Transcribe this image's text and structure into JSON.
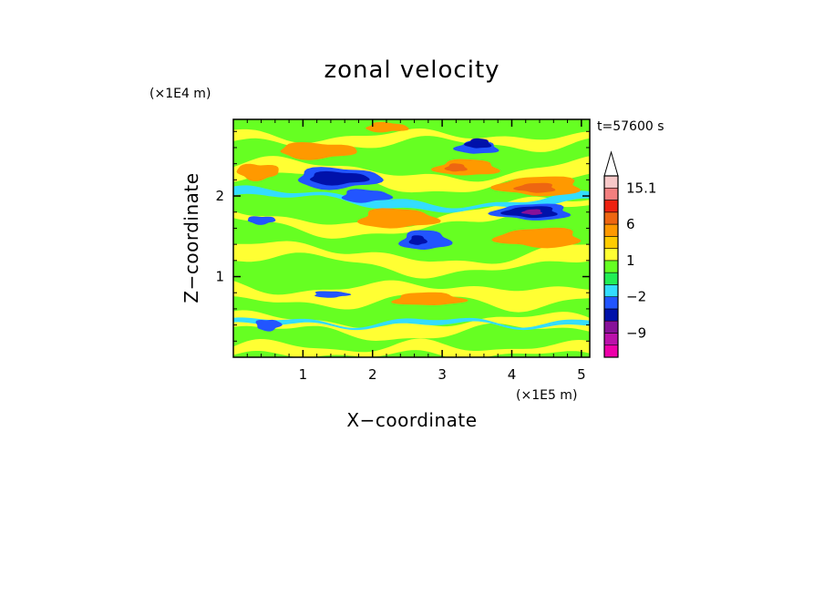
{
  "chart_data": {
    "type": "heatmap",
    "title": "zonal velocity",
    "xlabel": "X−coordinate",
    "ylabel": "Z−coordinate",
    "x_multiplier": "(×1E5 m)",
    "y_multiplier": "(×1E4 m)",
    "time_label": "t=57600 s",
    "xlim": [
      0,
      5.12
    ],
    "ylim": [
      0,
      2.95
    ],
    "x_ticks": [
      1,
      2,
      3,
      4,
      5
    ],
    "y_ticks": [
      1,
      2
    ],
    "x_tick_labels": [
      "1",
      "2",
      "3",
      "4",
      "5"
    ],
    "y_tick_labels": [
      "1",
      "2"
    ],
    "colorbar": {
      "extend": "max",
      "levels": [
        -15,
        -12,
        -9,
        -6,
        -3,
        -2,
        -1,
        0,
        1,
        2,
        3,
        6,
        9,
        12,
        15.1
      ],
      "colors": [
        "#ee00aa",
        "#bb11aa",
        "#881199",
        "#0011aa",
        "#2255ff",
        "#33ddff",
        "#22ee55",
        "#66ff22",
        "#ffff33",
        "#ffcc00",
        "#ff9900",
        "#ee6611",
        "#ee2211",
        "#f37f7f",
        "#f8c8c8"
      ],
      "tick_labels": [
        {
          "text": "15.1",
          "value": 15.1
        },
        {
          "text": "6",
          "value": 6
        },
        {
          "text": "1",
          "value": 1
        },
        {
          "text": "−2",
          "value": -2
        },
        {
          "text": "−9",
          "value": -9
        }
      ]
    },
    "field": {
      "background_level": "zero-band (green)",
      "bands": [
        {
          "level": 1,
          "z": 0.08,
          "amp": 0.05,
          "k": 3.0,
          "phase": 0.0,
          "thickness": 0.07
        },
        {
          "level": 1,
          "z": 0.38,
          "amp": 0.08,
          "k": 1.6,
          "phase": 1.0,
          "thickness": 0.09
        },
        {
          "level": 1,
          "z": 0.78,
          "amp": 0.06,
          "k": 2.1,
          "phase": 2.3,
          "thickness": 0.12
        },
        {
          "level": 1,
          "z": 1.22,
          "amp": 0.12,
          "k": 1.3,
          "phase": 0.7,
          "thickness": 0.1
        },
        {
          "level": 1,
          "z": 1.75,
          "amp": 0.18,
          "k": 1.0,
          "phase": 2.9,
          "thickness": 0.08
        },
        {
          "level": 1,
          "z": 2.25,
          "amp": 0.12,
          "k": 1.4,
          "phase": 0.4,
          "thickness": 0.1
        },
        {
          "level": 1,
          "z": 2.7,
          "amp": 0.06,
          "k": 2.2,
          "phase": 1.8,
          "thickness": 0.07
        },
        {
          "level": -2,
          "z": 1.95,
          "amp": 0.1,
          "k": 1.1,
          "phase": 1.2,
          "thickness": 0.05
        },
        {
          "level": -2,
          "z": 0.42,
          "amp": 0.04,
          "k": 2.5,
          "phase": 0.3,
          "thickness": 0.03
        }
      ],
      "blobs": [
        {
          "level": 3,
          "x": 1.2,
          "z": 2.56,
          "rx": 0.55,
          "rz": 0.1
        },
        {
          "level": 3,
          "x": 0.35,
          "z": 2.3,
          "rx": 0.3,
          "rz": 0.1
        },
        {
          "level": 3,
          "x": 2.35,
          "z": 1.72,
          "rx": 0.55,
          "rz": 0.12
        },
        {
          "level": 3,
          "x": 3.35,
          "z": 2.35,
          "rx": 0.45,
          "rz": 0.1
        },
        {
          "level": 3,
          "x": 4.4,
          "z": 2.12,
          "rx": 0.6,
          "rz": 0.12
        },
        {
          "level": 3,
          "x": 4.4,
          "z": 1.48,
          "rx": 0.6,
          "rz": 0.12
        },
        {
          "level": 3,
          "x": 2.8,
          "z": 0.72,
          "rx": 0.5,
          "rz": 0.08
        },
        {
          "level": 3,
          "x": 2.2,
          "z": 2.85,
          "rx": 0.3,
          "rz": 0.06
        },
        {
          "level": 6,
          "x": 4.35,
          "z": 2.1,
          "rx": 0.28,
          "rz": 0.06
        },
        {
          "level": 6,
          "x": 3.2,
          "z": 2.35,
          "rx": 0.15,
          "rz": 0.05
        },
        {
          "level": -3,
          "x": 1.5,
          "z": 2.22,
          "rx": 0.6,
          "rz": 0.13
        },
        {
          "level": -3,
          "x": 4.3,
          "z": 1.8,
          "rx": 0.55,
          "rz": 0.1
        },
        {
          "level": -3,
          "x": 2.75,
          "z": 1.45,
          "rx": 0.35,
          "rz": 0.12
        },
        {
          "level": -3,
          "x": 0.4,
          "z": 1.7,
          "rx": 0.2,
          "rz": 0.05
        },
        {
          "level": -3,
          "x": 1.9,
          "z": 2.0,
          "rx": 0.35,
          "rz": 0.08
        },
        {
          "level": -3,
          "x": 3.5,
          "z": 2.6,
          "rx": 0.3,
          "rz": 0.08
        },
        {
          "level": -3,
          "x": 0.5,
          "z": 0.4,
          "rx": 0.18,
          "rz": 0.07
        },
        {
          "level": -3,
          "x": 1.4,
          "z": 0.78,
          "rx": 0.25,
          "rz": 0.04
        },
        {
          "level": -6,
          "x": 1.5,
          "z": 2.22,
          "rx": 0.42,
          "rz": 0.08
        },
        {
          "level": -6,
          "x": 4.28,
          "z": 1.8,
          "rx": 0.38,
          "rz": 0.07
        },
        {
          "level": -6,
          "x": 3.52,
          "z": 2.65,
          "rx": 0.18,
          "rz": 0.06
        },
        {
          "level": -6,
          "x": 2.65,
          "z": 1.45,
          "rx": 0.12,
          "rz": 0.06
        },
        {
          "level": -9,
          "x": 4.3,
          "z": 1.8,
          "rx": 0.14,
          "rz": 0.035
        }
      ]
    }
  }
}
